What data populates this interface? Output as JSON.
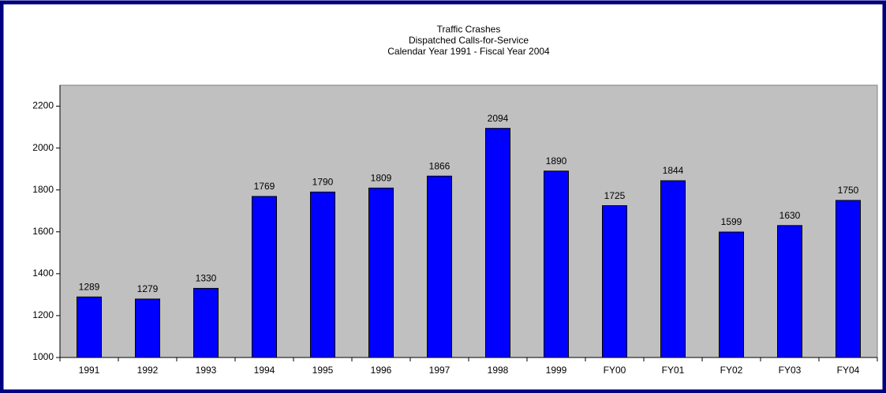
{
  "chart_data": {
    "type": "bar",
    "title": "Traffic Crashes",
    "subtitle": [
      "Dispatched Calls-for-Service",
      "Calendar Year 1991 - Fiscal Year 2004"
    ],
    "categories": [
      "1991",
      "1992",
      "1993",
      "1994",
      "1995",
      "1996",
      "1997",
      "1998",
      "1999",
      "FY00",
      "FY01",
      "FY02",
      "FY03",
      "FY04"
    ],
    "values": [
      1289,
      1279,
      1330,
      1769,
      1790,
      1809,
      1866,
      2094,
      1890,
      1725,
      1844,
      1599,
      1630,
      1750
    ],
    "color": "#0000ff",
    "plot_background": "#c0c0c0",
    "ylim": [
      1000,
      2300
    ],
    "yticks": [
      1000,
      1200,
      1400,
      1600,
      1800,
      2000,
      2200
    ],
    "grid": false
  }
}
